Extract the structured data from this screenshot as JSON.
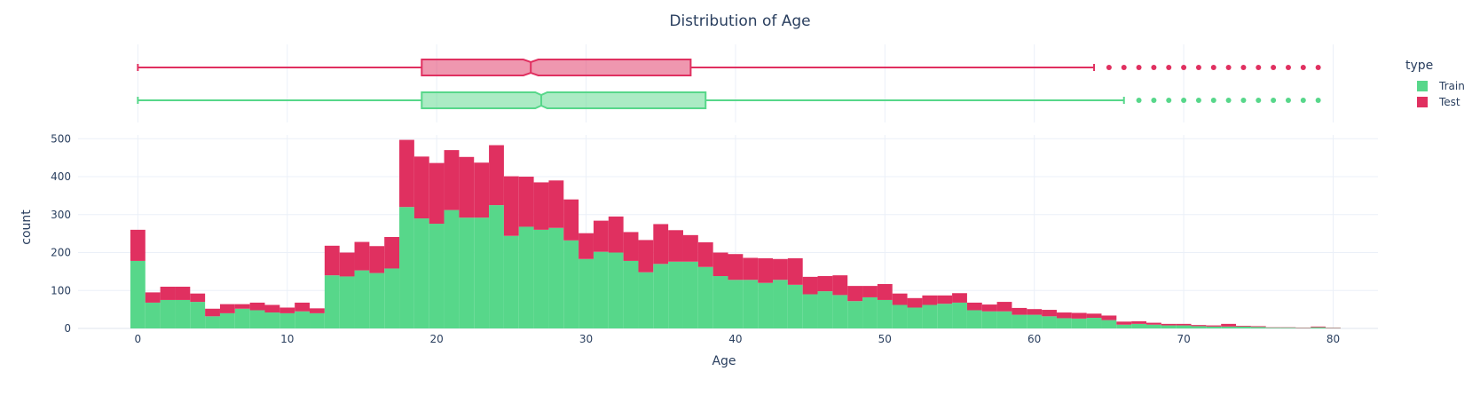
{
  "chart_data": {
    "type": "histogram",
    "title": "Distribution of Age",
    "xlabel": "Age",
    "ylabel": "count",
    "xlim": [
      -4,
      83
    ],
    "ylim": [
      0,
      510
    ],
    "x_ticks": [
      0,
      10,
      20,
      30,
      40,
      50,
      60,
      70,
      80
    ],
    "y_ticks": [
      0,
      100,
      200,
      300,
      400,
      500
    ],
    "barmode": "stack",
    "bin_start": -0.5,
    "bin_width": 1,
    "grid": true,
    "legend": {
      "title": "type",
      "position": "right"
    },
    "colors": {
      "Train": "#57d78a",
      "Test": "#e03060"
    },
    "series": [
      {
        "name": "Train",
        "values": [
          178,
          68,
          75,
          75,
          70,
          32,
          40,
          52,
          48,
          42,
          40,
          45,
          40,
          140,
          137,
          153,
          146,
          158,
          320,
          290,
          276,
          312,
          292,
          292,
          325,
          244,
          268,
          260,
          265,
          232,
          183,
          202,
          200,
          178,
          148,
          170,
          176,
          176,
          162,
          138,
          128,
          128,
          120,
          128,
          115,
          90,
          98,
          88,
          72,
          82,
          75,
          62,
          55,
          62,
          65,
          68,
          48,
          45,
          45,
          36,
          36,
          32,
          27,
          26,
          28,
          22,
          10,
          12,
          10,
          8,
          8,
          6,
          5,
          5,
          5,
          4,
          2,
          2,
          1,
          3,
          1
        ]
      },
      {
        "name": "Test",
        "values": [
          82,
          27,
          35,
          35,
          22,
          20,
          24,
          12,
          20,
          20,
          15,
          23,
          13,
          78,
          63,
          75,
          71,
          83,
          177,
          163,
          160,
          158,
          160,
          145,
          158,
          157,
          132,
          125,
          125,
          108,
          68,
          82,
          95,
          76,
          85,
          105,
          83,
          70,
          65,
          62,
          68,
          58,
          65,
          55,
          70,
          46,
          40,
          52,
          40,
          30,
          42,
          30,
          25,
          25,
          22,
          25,
          20,
          18,
          25,
          18,
          15,
          17,
          15,
          15,
          11,
          12,
          8,
          7,
          5,
          4,
          4,
          3,
          3,
          7,
          2,
          2,
          1,
          1,
          1,
          2,
          1
        ]
      }
    ],
    "box_plots": [
      {
        "name": "Test",
        "min": 0,
        "q1": 19,
        "median": 26.3,
        "notch_low": 25.8,
        "notch_high": 26.8,
        "q3": 37,
        "upper_fence": 64,
        "outliers": [
          65,
          66,
          67,
          68,
          69,
          70,
          71,
          72,
          73,
          74,
          75,
          76,
          77,
          78,
          79
        ]
      },
      {
        "name": "Train",
        "min": 0,
        "q1": 19,
        "median": 27,
        "notch_low": 26.6,
        "notch_high": 27.4,
        "q3": 38,
        "upper_fence": 66,
        "outliers": [
          67,
          68,
          69,
          70,
          71,
          72,
          73,
          74,
          75,
          76,
          77,
          78,
          79
        ]
      }
    ]
  }
}
